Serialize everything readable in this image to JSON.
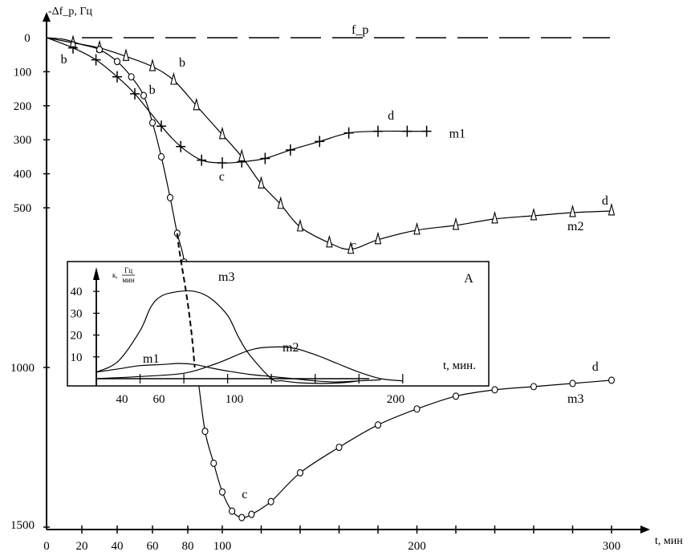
{
  "chart_data": {
    "type": "line",
    "main": {
      "ylabel": "-Δf_р, Гц",
      "xlabel": "t, мин",
      "x_ticks": [
        "0",
        "20",
        "40",
        "60",
        "80",
        "100",
        "200",
        "300"
      ],
      "y_ticks": [
        "0",
        "100",
        "200",
        "300",
        "400",
        "500",
        "1000",
        "1500"
      ],
      "xlim": [
        0,
        320
      ],
      "ylim": [
        0,
        1500
      ],
      "reference_line": {
        "label": "f_р",
        "y": 0,
        "style": "dashed"
      },
      "series": [
        {
          "name": "m1",
          "marker": "plus",
          "x": [
            0,
            15,
            28,
            40,
            50,
            65,
            76,
            88,
            100,
            110,
            122,
            135,
            150,
            165,
            180,
            195,
            205
          ],
          "y": [
            0,
            30,
            65,
            115,
            165,
            260,
            320,
            360,
            368,
            365,
            355,
            330,
            305,
            280,
            275,
            275,
            275
          ]
        },
        {
          "name": "m2",
          "marker": "triangle",
          "x": [
            0,
            15,
            30,
            45,
            60,
            72,
            85,
            100,
            110,
            120,
            130,
            140,
            155,
            166,
            180,
            200,
            220,
            240,
            260,
            280,
            300
          ],
          "y": [
            0,
            15,
            30,
            55,
            85,
            125,
            200,
            285,
            350,
            430,
            490,
            560,
            610,
            630,
            600,
            570,
            555,
            535,
            525,
            515,
            510
          ]
        },
        {
          "name": "m3",
          "marker": "circle",
          "x": [
            0,
            10,
            20,
            30,
            40,
            48,
            55,
            60,
            65,
            70,
            74,
            78,
            82,
            86,
            90,
            95,
            100,
            105,
            110,
            115,
            125,
            140,
            160,
            180,
            200,
            220,
            240,
            260,
            280,
            300
          ],
          "y": [
            0,
            5,
            20,
            35,
            70,
            115,
            170,
            250,
            350,
            470,
            580,
            670,
            880,
            1040,
            1200,
            1300,
            1390,
            1450,
            1470,
            1460,
            1420,
            1330,
            1250,
            1180,
            1130,
            1090,
            1070,
            1060,
            1050,
            1040
          ]
        }
      ],
      "point_annotations": [
        {
          "text": "b",
          "series": "m1",
          "x": 8,
          "y": 75
        },
        {
          "text": "b",
          "series": "m2",
          "x": 75,
          "y": 85
        },
        {
          "text": "b",
          "series": "m3",
          "x": 58,
          "y": 165
        },
        {
          "text": "c",
          "series": "m1",
          "x": 98,
          "y": 420
        },
        {
          "text": "c",
          "series": "m2",
          "x": 166,
          "y": 630
        },
        {
          "text": "c",
          "series": "m3",
          "x": 110,
          "y": 1410
        },
        {
          "text": "d",
          "series": "m1",
          "x": 185,
          "y": 240
        },
        {
          "text": "d",
          "series": "m2",
          "x": 295,
          "y": 490
        },
        {
          "text": "d",
          "series": "m3",
          "x": 290,
          "y": 1010
        }
      ]
    },
    "inset": {
      "label": "A",
      "ylabel_prefix": "к,",
      "ylabel_num": "Гц",
      "ylabel_den": "мин",
      "xlabel": "t, мин.",
      "y_ticks": [
        "10",
        "20",
        "30",
        "40"
      ],
      "x_ticks": [
        "40",
        "60",
        "100",
        "200"
      ],
      "series": [
        {
          "name": "m1",
          "x": [
            30,
            40,
            50,
            60,
            68,
            75,
            82,
            90,
            100,
            110,
            120,
            130,
            140,
            150,
            160
          ],
          "y": [
            3,
            4.5,
            6,
            6.5,
            7,
            6.5,
            5,
            3.5,
            2,
            1,
            0,
            -1,
            -1.5,
            -1,
            -0.5
          ]
        },
        {
          "name": "m2",
          "x": [
            30,
            50,
            70,
            85,
            100,
            110,
            120,
            130,
            140,
            150,
            160,
            170
          ],
          "y": [
            0,
            1,
            2.5,
            7,
            13,
            14.5,
            14,
            11,
            7,
            3,
            0,
            -1
          ]
        },
        {
          "name": "m3",
          "x": [
            30,
            40,
            50,
            55,
            60,
            68,
            75,
            82,
            90,
            95,
            100,
            110,
            115,
            125,
            140,
            150
          ],
          "y": [
            3,
            8,
            22,
            33,
            38,
            40,
            40,
            37,
            29,
            19,
            11,
            0,
            -1,
            -2,
            -2,
            -1
          ]
        }
      ]
    }
  }
}
